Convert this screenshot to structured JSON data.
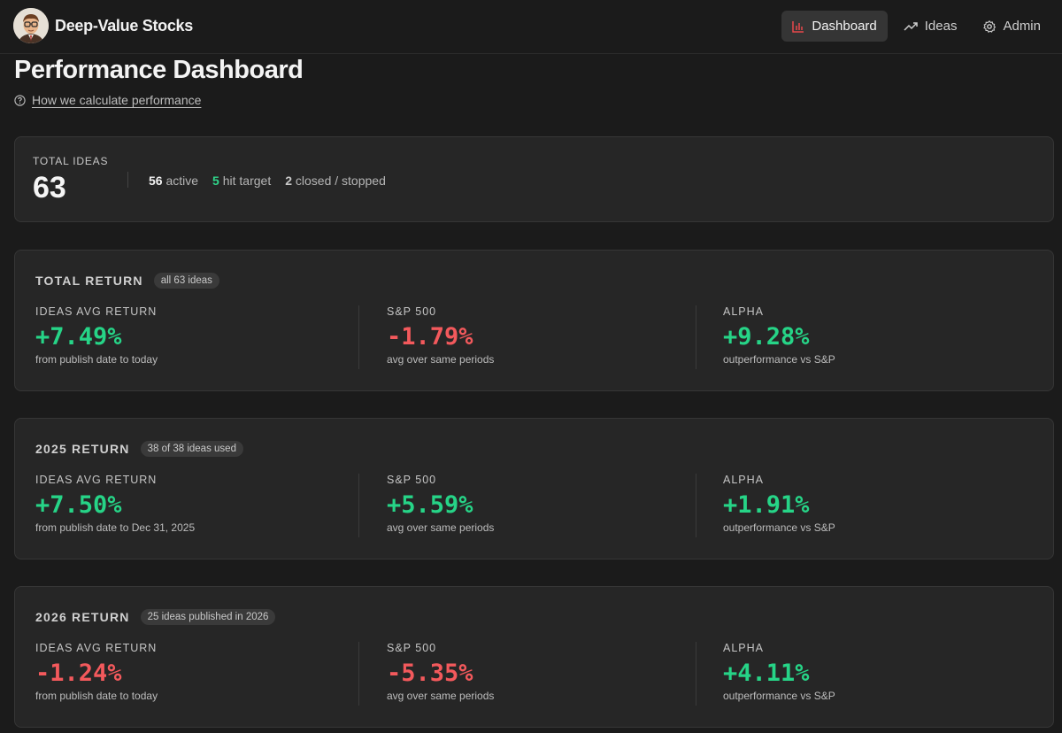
{
  "app": {
    "name": "Deep-Value Stocks"
  },
  "nav": [
    {
      "label": "Dashboard",
      "icon": "bar-chart-icon",
      "active": true
    },
    {
      "label": "Ideas",
      "icon": "trending-up-icon",
      "active": false
    },
    {
      "label": "Admin",
      "icon": "gear-icon",
      "active": false
    }
  ],
  "page": {
    "title": "Performance Dashboard",
    "help_link": "How we calculate performance"
  },
  "summary": {
    "label": "TOTAL IDEAS",
    "total": "63",
    "active_count": "56",
    "active_label": "active",
    "hit_count": "5",
    "hit_label": "hit target",
    "closed_count": "2",
    "closed_label": "closed / stopped"
  },
  "returns": [
    {
      "title": "TOTAL RETURN",
      "badge": "all 63 ideas",
      "ideas": {
        "label": "IDEAS AVG RETURN",
        "value": "+7.49%",
        "sub": "from publish date to today",
        "sign": "pos"
      },
      "sp": {
        "label": "S&P 500",
        "value": "-1.79%",
        "sub": "avg over same periods",
        "sign": "neg"
      },
      "alpha": {
        "label": "ALPHA",
        "value": "+9.28%",
        "sub": "outperformance vs S&P",
        "sign": "pos"
      }
    },
    {
      "title": "2025 RETURN",
      "badge": "38 of 38 ideas used",
      "ideas": {
        "label": "IDEAS AVG RETURN",
        "value": "+7.50%",
        "sub": "from publish date to Dec 31, 2025",
        "sign": "pos"
      },
      "sp": {
        "label": "S&P 500",
        "value": "+5.59%",
        "sub": "avg over same periods",
        "sign": "pos"
      },
      "alpha": {
        "label": "ALPHA",
        "value": "+1.91%",
        "sub": "outperformance vs S&P",
        "sign": "pos"
      }
    },
    {
      "title": "2026 RETURN",
      "badge": "25 ideas published in 2026",
      "ideas": {
        "label": "IDEAS AVG RETURN",
        "value": "-1.24%",
        "sub": "from publish date to today",
        "sign": "neg"
      },
      "sp": {
        "label": "S&P 500",
        "value": "-5.35%",
        "sub": "avg over same periods",
        "sign": "neg"
      },
      "alpha": {
        "label": "ALPHA",
        "value": "+4.11%",
        "sub": "outperformance vs S&P",
        "sign": "pos"
      }
    }
  ],
  "colors": {
    "positive": "#26d487",
    "negative": "#f3595c",
    "accent": "#e8484b"
  }
}
